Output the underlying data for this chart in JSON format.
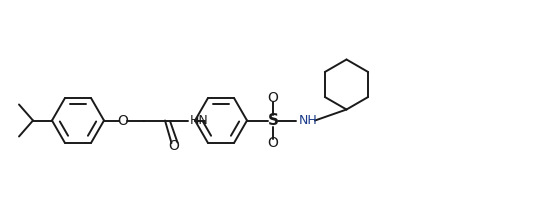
{
  "bg_color": "#ffffff",
  "line_color": "#1a1a1a",
  "line_width": 1.4,
  "figsize": [
    5.51,
    2.23
  ],
  "dpi": 100,
  "xlim": [
    0,
    11
  ],
  "ylim": [
    0,
    4.46
  ]
}
